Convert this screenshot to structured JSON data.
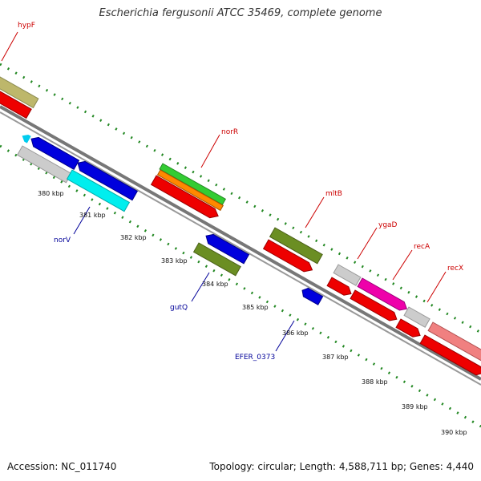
{
  "title": "Escherichia fergusonii ATCC 35469, complete genome",
  "footer": {
    "accession": "Accession: NC_011740",
    "topology": "Topology: circular; Length: 4,588,711 bp; Genes: 4,440"
  },
  "kbp_labels": [
    "380 kbp",
    "381 kbp",
    "382 kbp",
    "383 kbp",
    "384 kbp",
    "385 kbp",
    "386 kbp",
    "387 kbp",
    "388 kbp",
    "389 kbp",
    "390 kbp"
  ],
  "gene_labels": {
    "hypF": "hypF",
    "norR": "norR",
    "mltB": "mltB",
    "ygaD": "ygaD",
    "recA": "recA",
    "recX": "recX",
    "norV": "norV",
    "gutQ": "gutQ",
    "EFER_0373": "EFER_0373"
  },
  "colors": {
    "backbone": "#777777",
    "tick_green": "#228822",
    "gene_red": "#ee0000",
    "gene_blue": "#0000dd",
    "gene_cyan": "#00eeee",
    "gene_olive": "#6b8e23",
    "gene_green": "#33cc33",
    "gene_orange": "#ff8800",
    "gene_magenta": "#ee00aa",
    "gene_pink": "#f08080",
    "gene_grey": "#cccccc",
    "gene_khaki": "#bdb76b",
    "label_red": "#cc0000",
    "label_blue": "#000099"
  }
}
